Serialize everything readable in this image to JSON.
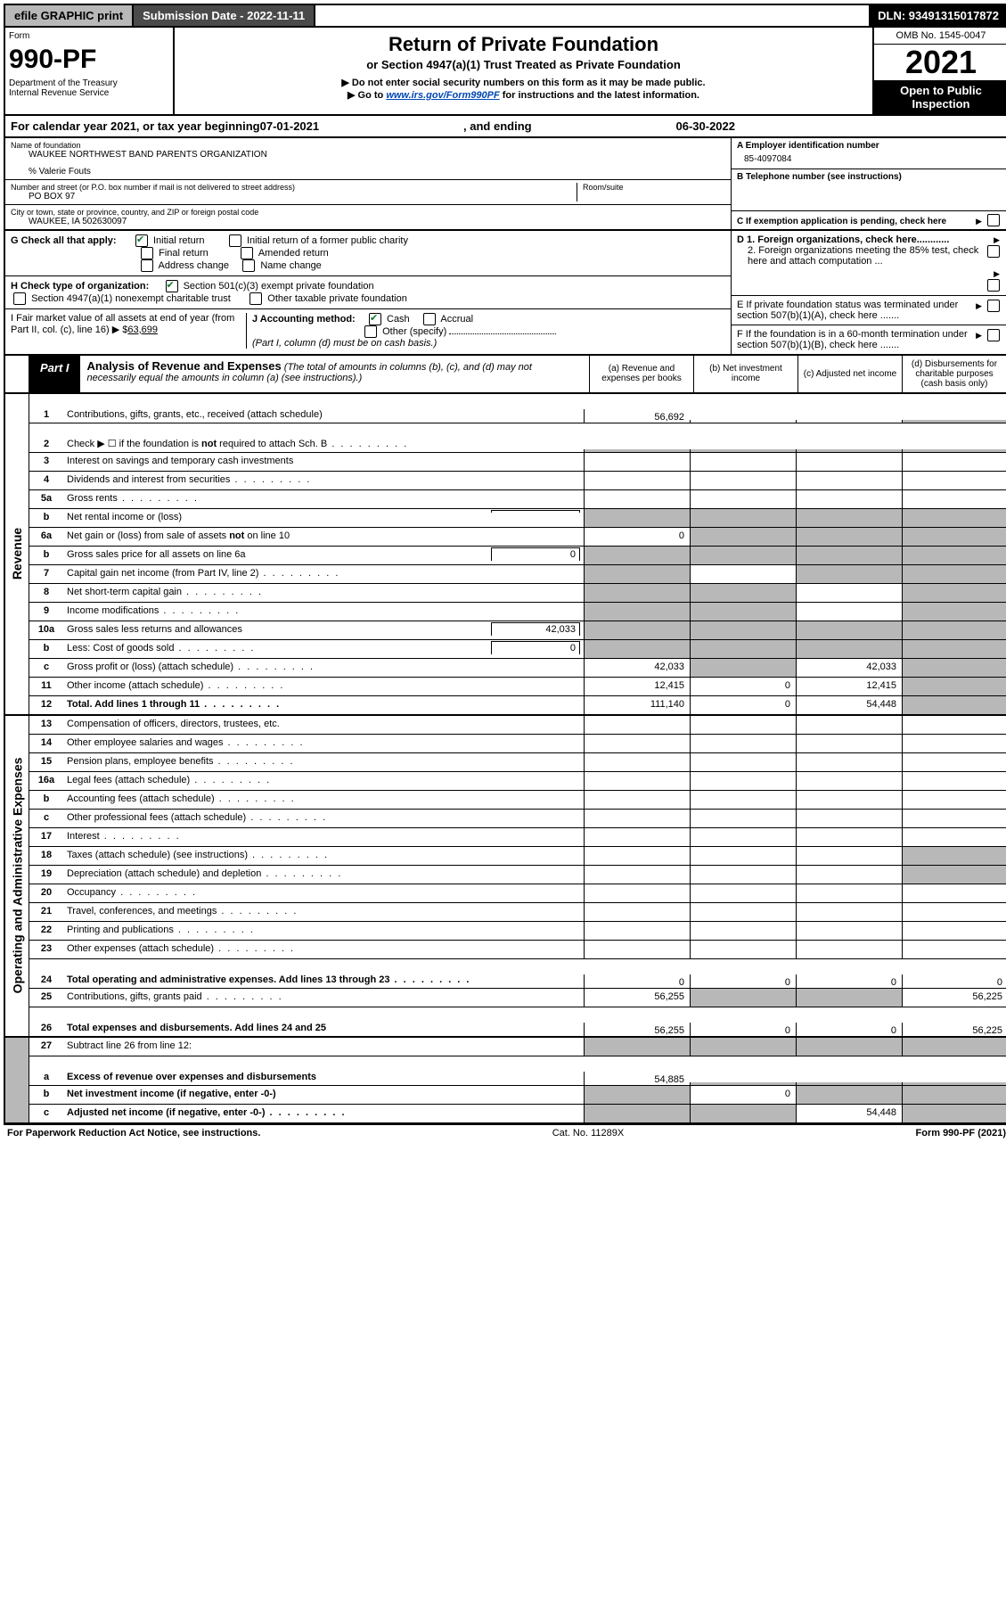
{
  "top": {
    "efile": "efile GRAPHIC print",
    "submission_label": "Submission Date - 2022-11-11",
    "dln": "DLN: 93491315017872"
  },
  "header": {
    "form_label": "Form",
    "form_number": "990-PF",
    "dept": "Department of the Treasury",
    "irs": "Internal Revenue Service",
    "title": "Return of Private Foundation",
    "subtitle": "or Section 4947(a)(1) Trust Treated as Private Foundation",
    "note1": "▶ Do not enter social security numbers on this form as it may be made public.",
    "note2_prefix": "▶ Go to ",
    "note2_link": "www.irs.gov/Form990PF",
    "note2_suffix": " for instructions and the latest information.",
    "omb": "OMB No. 1545-0047",
    "year": "2021",
    "open": "Open to Public Inspection"
  },
  "calendar": {
    "prefix": "For calendar year 2021, or tax year beginning ",
    "begin": "07-01-2021",
    "mid": ", and ending ",
    "end": "06-30-2022"
  },
  "info": {
    "name_label": "Name of foundation",
    "name": "WAUKEE NORTHWEST BAND PARENTS ORGANIZATION",
    "co": "% Valerie Fouts",
    "addr_label": "Number and street (or P.O. box number if mail is not delivered to street address)",
    "addr": "PO BOX 97",
    "room_label": "Room/suite",
    "city_label": "City or town, state or province, country, and ZIP or foreign postal code",
    "city": "WAUKEE, IA  502630097",
    "a_label": "A Employer identification number",
    "a_val": "85-4097084",
    "b_label": "B Telephone number (see instructions)",
    "c_label": "C If exemption application is pending, check here"
  },
  "g": {
    "label": "G Check all that apply:",
    "o1": "Initial return",
    "o2": "Initial return of a former public charity",
    "o3": "Final return",
    "o4": "Amended return",
    "o5": "Address change",
    "o6": "Name change"
  },
  "h": {
    "label": "H Check type of organization:",
    "o1": "Section 501(c)(3) exempt private foundation",
    "o2": "Section 4947(a)(1) nonexempt charitable trust",
    "o3": "Other taxable private foundation"
  },
  "i": {
    "label": "I Fair market value of all assets at end of year (from Part II, col. (c), line 16)",
    "val_prefix": "▶ $",
    "val": "63,699"
  },
  "j": {
    "label": "J Accounting method:",
    "o1": "Cash",
    "o2": "Accrual",
    "o3": "Other (specify)",
    "note": "(Part I, column (d) must be on cash basis.)"
  },
  "d": {
    "d1": "D 1. Foreign organizations, check here............",
    "d2": "2. Foreign organizations meeting the 85% test, check here and attach computation ...",
    "e": "E  If private foundation status was terminated under section 507(b)(1)(A), check here .......",
    "f": "F  If the foundation is in a 60-month termination under section 507(b)(1)(B), check here ......."
  },
  "part1": {
    "label": "Part I",
    "title": "Analysis of Revenue and Expenses",
    "note": " (The total of amounts in columns (b), (c), and (d) may not necessarily equal the amounts in column (a) (see instructions).)",
    "cols": {
      "a": "(a)   Revenue and expenses per books",
      "b": "(b)   Net investment income",
      "c": "(c)   Adjusted net income",
      "d": "(d)   Disbursements for charitable purposes (cash basis only)"
    }
  },
  "sides": {
    "rev": "Revenue",
    "exp": "Operating and Administrative Expenses"
  },
  "rows": [
    {
      "n": "1",
      "d": "Contributions, gifts, grants, etc., received (attach schedule)",
      "a": "56,692",
      "tall": true,
      "shadeD": true
    },
    {
      "n": "2",
      "d": "Check ▶ ☐ if the foundation is not required to attach Sch. B",
      "tall": true,
      "shadeAll": true,
      "dots": true
    },
    {
      "n": "3",
      "d": "Interest on savings and temporary cash investments"
    },
    {
      "n": "4",
      "d": "Dividends and interest from securities",
      "dots": true
    },
    {
      "n": "5a",
      "d": "Gross rents",
      "dots": true
    },
    {
      "n": "b",
      "d": "Net rental income or (loss)",
      "shadeAll": true,
      "inline": ""
    },
    {
      "n": "6a",
      "d": "Net gain or (loss) from sale of assets not on line 10",
      "a": "0",
      "shadeBCD": true
    },
    {
      "n": "b",
      "d": "Gross sales price for all assets on line 6a",
      "shadeAll": true,
      "inline": "0"
    },
    {
      "n": "7",
      "d": "Capital gain net income (from Part IV, line 2)",
      "dots": true,
      "shadeA": true,
      "shadeCD": true
    },
    {
      "n": "8",
      "d": "Net short-term capital gain",
      "dots": true,
      "shadeAB": true,
      "shadeD": true
    },
    {
      "n": "9",
      "d": "Income modifications",
      "dots": true,
      "shadeAB": true,
      "shadeD": true
    },
    {
      "n": "10a",
      "d": "Gross sales less returns and allowances",
      "shadeAll": true,
      "inline": "42,033"
    },
    {
      "n": "b",
      "d": "Less: Cost of goods sold",
      "dots": true,
      "shadeAll": true,
      "inline": "0"
    },
    {
      "n": "c",
      "d": "Gross profit or (loss) (attach schedule)",
      "dots": true,
      "a": "42,033",
      "c": "42,033",
      "shadeB": true,
      "shadeD": true
    },
    {
      "n": "11",
      "d": "Other income (attach schedule)",
      "dots": true,
      "a": "12,415",
      "b": "0",
      "c": "12,415",
      "shadeD": true
    },
    {
      "n": "12",
      "d": "Total. Add lines 1 through 11",
      "dots": true,
      "bold": true,
      "a": "111,140",
      "b": "0",
      "c": "54,448",
      "shadeD": true
    }
  ],
  "exp_rows": [
    {
      "n": "13",
      "d": "Compensation of officers, directors, trustees, etc."
    },
    {
      "n": "14",
      "d": "Other employee salaries and wages",
      "dots": true
    },
    {
      "n": "15",
      "d": "Pension plans, employee benefits",
      "dots": true
    },
    {
      "n": "16a",
      "d": "Legal fees (attach schedule)",
      "dots": true
    },
    {
      "n": "b",
      "d": "Accounting fees (attach schedule)",
      "dots": true
    },
    {
      "n": "c",
      "d": "Other professional fees (attach schedule)",
      "dots": true
    },
    {
      "n": "17",
      "d": "Interest",
      "dots": true
    },
    {
      "n": "18",
      "d": "Taxes (attach schedule) (see instructions)",
      "dots": true,
      "shadeD": true
    },
    {
      "n": "19",
      "d": "Depreciation (attach schedule) and depletion",
      "dots": true,
      "shadeD": true
    },
    {
      "n": "20",
      "d": "Occupancy",
      "dots": true
    },
    {
      "n": "21",
      "d": "Travel, conferences, and meetings",
      "dots": true
    },
    {
      "n": "22",
      "d": "Printing and publications",
      "dots": true
    },
    {
      "n": "23",
      "d": "Other expenses (attach schedule)",
      "dots": true
    },
    {
      "n": "24",
      "d": "Total operating and administrative expenses. Add lines 13 through 23",
      "dots": true,
      "bold": true,
      "tall": true,
      "a": "0",
      "b": "0",
      "c": "0",
      "dv": "0"
    },
    {
      "n": "25",
      "d": "Contributions, gifts, grants paid",
      "dots": true,
      "a": "56,255",
      "shadeBC": true,
      "dv": "56,225"
    },
    {
      "n": "26",
      "d": "Total expenses and disbursements. Add lines 24 and 25",
      "bold": true,
      "tall": true,
      "a": "56,255",
      "b": "0",
      "c": "0",
      "dv": "56,225"
    }
  ],
  "bottom_rows": [
    {
      "n": "27",
      "d": "Subtract line 26 from line 12:",
      "shadeAll": true
    },
    {
      "n": "a",
      "d": "Excess of revenue over expenses and disbursements",
      "bold": true,
      "a": "54,885",
      "shadeBCD": true,
      "tall": true
    },
    {
      "n": "b",
      "d": "Net investment income (if negative, enter -0-)",
      "bold": true,
      "shadeA": true,
      "b": "0",
      "shadeCD": true
    },
    {
      "n": "c",
      "d": "Adjusted net income (if negative, enter -0-)",
      "bold": true,
      "dots": true,
      "shadeAB": true,
      "c": "54,448",
      "shadeD": true
    }
  ],
  "footer": {
    "left": "For Paperwork Reduction Act Notice, see instructions.",
    "mid": "Cat. No. 11289X",
    "right": "Form 990-PF (2021)"
  }
}
